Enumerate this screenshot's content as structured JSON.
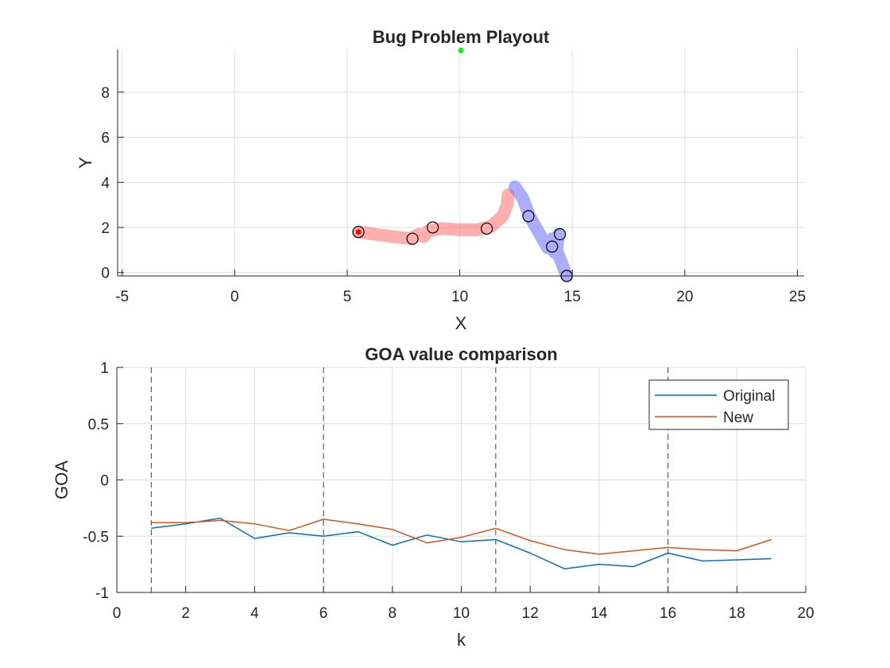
{
  "chart_data": [
    {
      "type": "scatter",
      "title": "Bug Problem Playout",
      "xlabel": "X",
      "ylabel": "Y",
      "xlim": [
        -5.2,
        25.3
      ],
      "ylim": [
        -0.15,
        9.9
      ],
      "xticks": [
        "-5",
        "0",
        "5",
        "10",
        "15",
        "20",
        "25"
      ],
      "yticks": [
        "0",
        "2",
        "4",
        "6",
        "8"
      ],
      "xtick_values": [
        -5,
        0,
        5,
        10,
        15,
        20,
        25
      ],
      "ytick_values": [
        0,
        2,
        4,
        6,
        8
      ],
      "grid": true,
      "goal": {
        "x": 10.05,
        "y": 9.85,
        "color": "#00ff00"
      },
      "start": {
        "x": 5.5,
        "y": 1.8,
        "color": "#ff0000"
      },
      "red_path": {
        "color": "#ff6a6a",
        "points": [
          [
            5.5,
            1.8
          ],
          [
            6.2,
            1.7
          ],
          [
            7.0,
            1.6
          ],
          [
            7.8,
            1.5
          ],
          [
            8.2,
            1.7
          ],
          [
            8.4,
            1.6
          ],
          [
            8.6,
            1.85
          ],
          [
            9.2,
            1.95
          ],
          [
            10.0,
            1.9
          ],
          [
            10.8,
            1.9
          ],
          [
            11.4,
            2.05
          ],
          [
            11.9,
            2.5
          ],
          [
            12.1,
            3.0
          ],
          [
            12.15,
            3.45
          ]
        ]
      },
      "blue_path": {
        "color": "#6a6aff",
        "points": [
          [
            12.45,
            3.8
          ],
          [
            12.8,
            3.3
          ],
          [
            13.1,
            2.5
          ],
          [
            13.5,
            1.8
          ],
          [
            13.9,
            1.1
          ],
          [
            14.1,
            1.5
          ],
          [
            14.2,
            0.9
          ],
          [
            14.4,
            1.7
          ],
          [
            14.3,
            1.0
          ],
          [
            14.5,
            0.5
          ],
          [
            14.75,
            -0.15
          ]
        ]
      },
      "markers": [
        [
          5.5,
          1.8
        ],
        [
          7.9,
          1.5
        ],
        [
          8.8,
          2.0
        ],
        [
          11.2,
          1.95
        ],
        [
          13.05,
          2.5
        ],
        [
          14.1,
          1.15
        ],
        [
          14.45,
          1.7
        ],
        [
          14.75,
          -0.15
        ]
      ]
    },
    {
      "type": "line",
      "title": "GOA value comparison",
      "xlabel": "k",
      "ylabel": "GOA",
      "xlim": [
        0,
        20
      ],
      "ylim": [
        -1,
        1
      ],
      "xticks": [
        "0",
        "2",
        "4",
        "6",
        "8",
        "10",
        "12",
        "14",
        "16",
        "18",
        "20"
      ],
      "yticks": [
        "1",
        "0.5",
        "0",
        "-0.5",
        "-1"
      ],
      "xtick_values": [
        0,
        2,
        4,
        6,
        8,
        10,
        12,
        14,
        16,
        18,
        20
      ],
      "ytick_values": [
        1,
        0.5,
        0,
        -0.5,
        -1
      ],
      "grid": true,
      "vlines": [
        1,
        6,
        11,
        16
      ],
      "x": [
        1,
        2,
        3,
        4,
        5,
        6,
        7,
        8,
        9,
        10,
        11,
        12,
        13,
        14,
        15,
        16,
        17,
        18,
        19
      ],
      "series": [
        {
          "name": "Original",
          "color": "#0072bd",
          "values": [
            -0.43,
            -0.39,
            -0.34,
            -0.52,
            -0.47,
            -0.5,
            -0.46,
            -0.58,
            -0.49,
            -0.55,
            -0.53,
            -0.65,
            -0.79,
            -0.75,
            -0.77,
            -0.65,
            -0.72,
            -0.71,
            -0.7
          ]
        },
        {
          "name": "New",
          "color": "#d95319",
          "values": [
            -0.38,
            -0.38,
            -0.36,
            -0.39,
            -0.45,
            -0.35,
            -0.39,
            -0.44,
            -0.56,
            -0.51,
            -0.43,
            -0.54,
            -0.62,
            -0.66,
            -0.63,
            -0.6,
            -0.62,
            -0.63,
            -0.53
          ]
        }
      ],
      "legend_position": "top-right"
    }
  ]
}
